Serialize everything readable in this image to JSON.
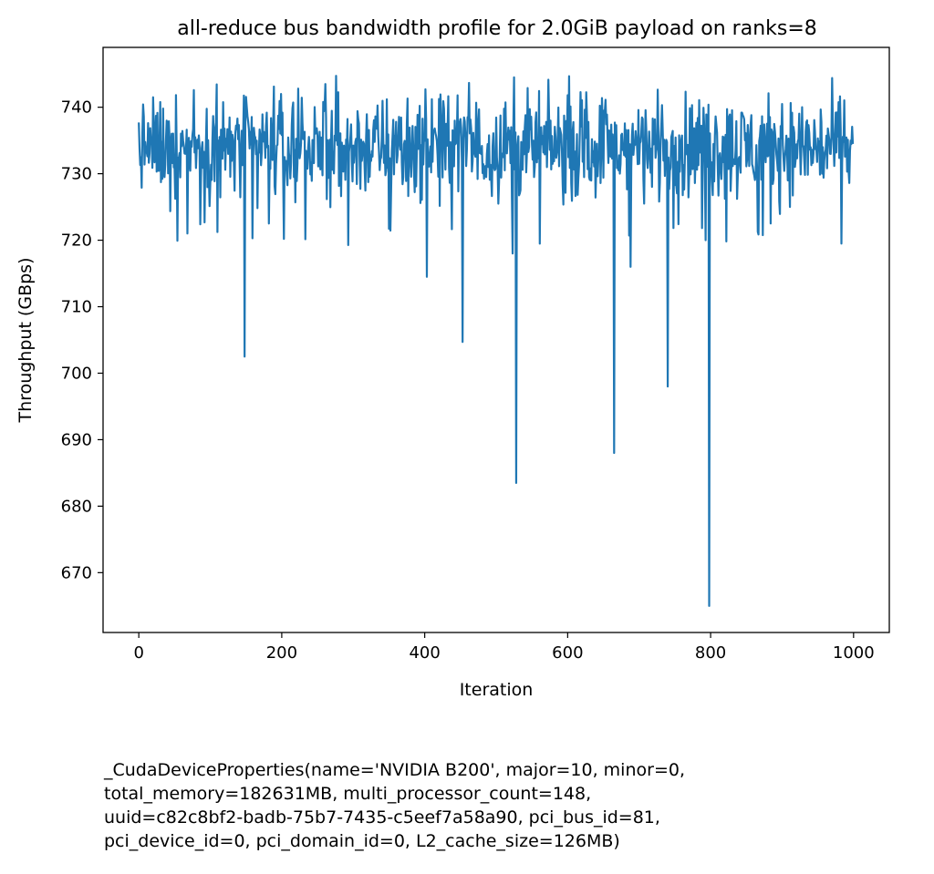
{
  "chart_data": {
    "type": "line",
    "title": "all-reduce bus bandwidth profile for 2.0GiB payload on ranks=8",
    "xlabel": "Iteration",
    "ylabel": "Throughput (GBps)",
    "xlim": [
      -50,
      1050
    ],
    "ylim": [
      661,
      749
    ],
    "xticks": [
      0,
      200,
      400,
      600,
      800,
      1000
    ],
    "yticks": [
      670,
      680,
      690,
      700,
      710,
      720,
      730,
      740
    ],
    "xtick_labels": [
      "0",
      "200",
      "400",
      "600",
      "800",
      "1000"
    ],
    "ytick_labels": [
      "670",
      "680",
      "690",
      "700",
      "710",
      "720",
      "730",
      "740"
    ],
    "grid": false,
    "series": [
      {
        "color": "#1f77b4",
        "x_range": [
          0,
          999
        ],
        "baseline_min": 723,
        "baseline_max": 745,
        "typical_center": 732,
        "spikes": [
          {
            "x": 148,
            "y": 702.5
          },
          {
            "x": 403,
            "y": 714.5
          },
          {
            "x": 453,
            "y": 704.7
          },
          {
            "x": 523,
            "y": 718
          },
          {
            "x": 528,
            "y": 683.5
          },
          {
            "x": 665,
            "y": 688
          },
          {
            "x": 688,
            "y": 716
          },
          {
            "x": 740,
            "y": 698
          },
          {
            "x": 798,
            "y": 665
          }
        ]
      }
    ]
  },
  "footnote": [
    "_CudaDeviceProperties(name='NVIDIA B200', major=10, minor=0,",
    "total_memory=182631MB, multi_processor_count=148,",
    "uuid=c82c8bf2-badb-75b7-7435-c5eef7a58a90, pci_bus_id=81,",
    "pci_device_id=0, pci_domain_id=0, L2_cache_size=126MB)"
  ]
}
